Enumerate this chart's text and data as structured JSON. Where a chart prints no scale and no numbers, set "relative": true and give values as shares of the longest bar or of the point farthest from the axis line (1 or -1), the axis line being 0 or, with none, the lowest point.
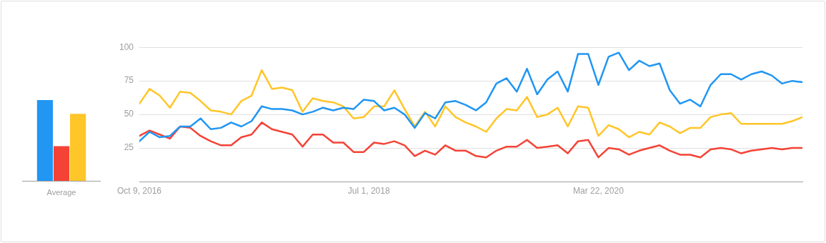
{
  "chart_data": [
    {
      "type": "bar",
      "relative": true,
      "categories": [
        "Average"
      ],
      "legend": false,
      "grid": false,
      "series": [
        {
          "color": "#2196f3",
          "values": [
            1
          ]
        },
        {
          "color": "#f44336",
          "values": [
            0.43
          ]
        },
        {
          "color": "#ffc629",
          "values": [
            0.83
          ]
        }
      ]
    },
    {
      "type": "line",
      "legend": false,
      "grid": "y",
      "marker": "none",
      "line_style": "solid",
      "x": [
        "2016-10-09",
        "2016-11-06",
        "2016-12-04",
        "2017-01-01",
        "2017-01-29",
        "2017-02-26",
        "2017-03-26",
        "2017-04-23",
        "2017-05-21",
        "2017-06-18",
        "2017-07-16",
        "2017-08-13",
        "2017-09-10",
        "2017-10-08",
        "2017-11-05",
        "2017-12-03",
        "2017-12-31",
        "2018-01-28",
        "2018-02-25",
        "2018-03-25",
        "2018-04-22",
        "2018-05-20",
        "2018-06-17",
        "2018-07-15",
        "2018-08-12",
        "2018-09-09",
        "2018-10-07",
        "2018-11-04",
        "2018-12-02",
        "2018-12-30",
        "2019-01-27",
        "2019-02-24",
        "2019-03-24",
        "2019-04-21",
        "2019-05-19",
        "2019-06-16",
        "2019-07-14",
        "2019-08-11",
        "2019-09-08",
        "2019-10-06",
        "2019-11-03",
        "2019-12-01",
        "2019-12-29",
        "2020-01-26",
        "2020-02-23",
        "2020-03-22",
        "2020-04-19",
        "2020-05-17",
        "2020-06-14",
        "2020-07-12",
        "2020-08-09",
        "2020-09-06",
        "2020-10-04",
        "2020-11-01",
        "2020-11-29",
        "2020-12-27",
        "2021-01-24",
        "2021-02-21",
        "2021-03-21",
        "2021-04-18",
        "2021-05-16",
        "2021-06-13",
        "2021-07-11",
        "2021-08-08",
        "2021-09-05",
        "2021-10-03"
      ],
      "xlim": [
        "2016-10-09",
        "2021-10-03"
      ],
      "xticks": [
        {
          "value": "2016-10-09",
          "label": "Oct 9, 2016"
        },
        {
          "value": "2018-07-01",
          "label": "Jul 1, 2018"
        },
        {
          "value": "2020-03-22",
          "label": "Mar 22, 2020"
        }
      ],
      "ylim": [
        0,
        100
      ],
      "yticks": [
        25,
        50,
        75,
        100
      ],
      "series": [
        {
          "color": "#2196f3",
          "values": [
            30,
            37,
            33,
            34,
            41,
            41,
            47,
            39,
            40,
            44,
            41,
            45,
            56,
            54,
            54,
            53,
            50,
            52,
            55,
            53,
            55,
            54,
            61,
            60,
            53,
            55,
            50,
            40,
            51,
            47,
            59,
            60,
            57,
            53,
            59,
            73,
            77,
            67,
            84,
            65,
            76,
            82,
            67,
            95,
            95,
            72,
            93,
            96,
            83,
            90,
            86,
            88,
            68,
            58,
            61,
            56,
            72,
            80,
            80,
            76,
            80,
            82,
            79,
            73,
            75,
            74
          ]
        },
        {
          "color": "#f44336",
          "values": [
            34,
            38,
            35,
            32,
            41,
            40,
            34,
            30,
            27,
            27,
            33,
            35,
            44,
            39,
            37,
            35,
            26,
            35,
            35,
            29,
            29,
            22,
            22,
            29,
            28,
            30,
            27,
            19,
            23,
            20,
            27,
            23,
            23,
            19,
            18,
            23,
            26,
            26,
            31,
            25,
            26,
            27,
            21,
            30,
            31,
            18,
            25,
            24,
            20,
            23,
            25,
            27,
            23,
            20,
            20,
            18,
            24,
            25,
            24,
            21,
            23,
            24,
            25,
            24,
            25,
            25
          ]
        },
        {
          "color": "#ffc629",
          "values": [
            58,
            69,
            64,
            55,
            67,
            66,
            60,
            53,
            52,
            50,
            60,
            64,
            83,
            69,
            70,
            68,
            52,
            62,
            60,
            59,
            56,
            47,
            48,
            56,
            56,
            68,
            54,
            41,
            52,
            41,
            56,
            48,
            44,
            41,
            37,
            47,
            54,
            53,
            63,
            48,
            50,
            55,
            41,
            56,
            55,
            34,
            42,
            39,
            33,
            37,
            35,
            44,
            41,
            36,
            40,
            40,
            48,
            50,
            51,
            43,
            43,
            43,
            43,
            43,
            45,
            48
          ]
        }
      ]
    }
  ]
}
